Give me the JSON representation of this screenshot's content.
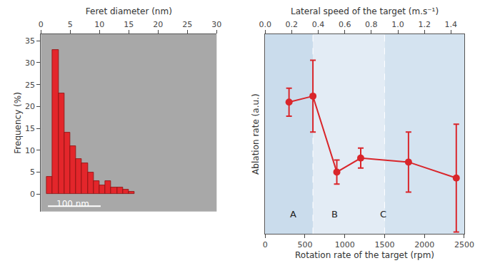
{
  "chart_data": [
    {
      "type": "histogram",
      "x_label": "Feret diameter (nm)",
      "y_label": "Frequency (%)",
      "bins": [
        1,
        2,
        3,
        4,
        5,
        6,
        7,
        8,
        9,
        10,
        11,
        12,
        13,
        14,
        15,
        16
      ],
      "values": [
        4,
        33,
        23,
        14,
        11,
        8,
        7,
        5,
        3,
        2,
        3,
        1.5,
        1.5,
        1,
        0.5
      ],
      "color": "#e3262b",
      "xlim": [
        0,
        30
      ],
      "xticks": [
        0,
        5,
        10,
        15,
        20,
        25,
        30
      ],
      "ylim": [
        -4,
        36.5
      ],
      "yticks": [
        0,
        5,
        10,
        15,
        20,
        25,
        30,
        35
      ],
      "annotations": [
        {
          "text": "100 nm",
          "x": 5.5,
          "y": -2.3
        }
      ]
    },
    {
      "type": "line",
      "x_label": "Rotation rate of the target (rpm)",
      "x2_label": "Lateral speed of the target (m.s⁻¹)",
      "y_label": "Ablation rate (a.u.)",
      "x": [
        300,
        600,
        900,
        1200,
        1800,
        2400
      ],
      "values": [
        0.66,
        0.69,
        0.31,
        0.38,
        0.36,
        0.28
      ],
      "error": [
        0.07,
        0.18,
        0.06,
        0.05,
        0.15,
        0.27
      ],
      "color": "#d9262b",
      "marker": "circle",
      "xlim": [
        0,
        2500
      ],
      "xticks": [
        0,
        500,
        1000,
        1500,
        2000,
        2500
      ],
      "x2lim": [
        0,
        1.5
      ],
      "x2ticks": [
        {
          "value": 0,
          "label": "0.0"
        },
        0.2,
        0.4,
        0.6,
        0.8,
        {
          "value": 1,
          "label": "1.0"
        },
        1.2,
        1.4
      ],
      "ylim": [
        0,
        1
      ],
      "tick_labels": "x",
      "annotations": [
        {
          "text": "A",
          "x": 350,
          "y": 0.1
        },
        {
          "text": "B",
          "x": 870,
          "y": 0.1
        },
        {
          "text": "C",
          "x": 1480,
          "y": 0.1
        }
      ]
    }
  ]
}
